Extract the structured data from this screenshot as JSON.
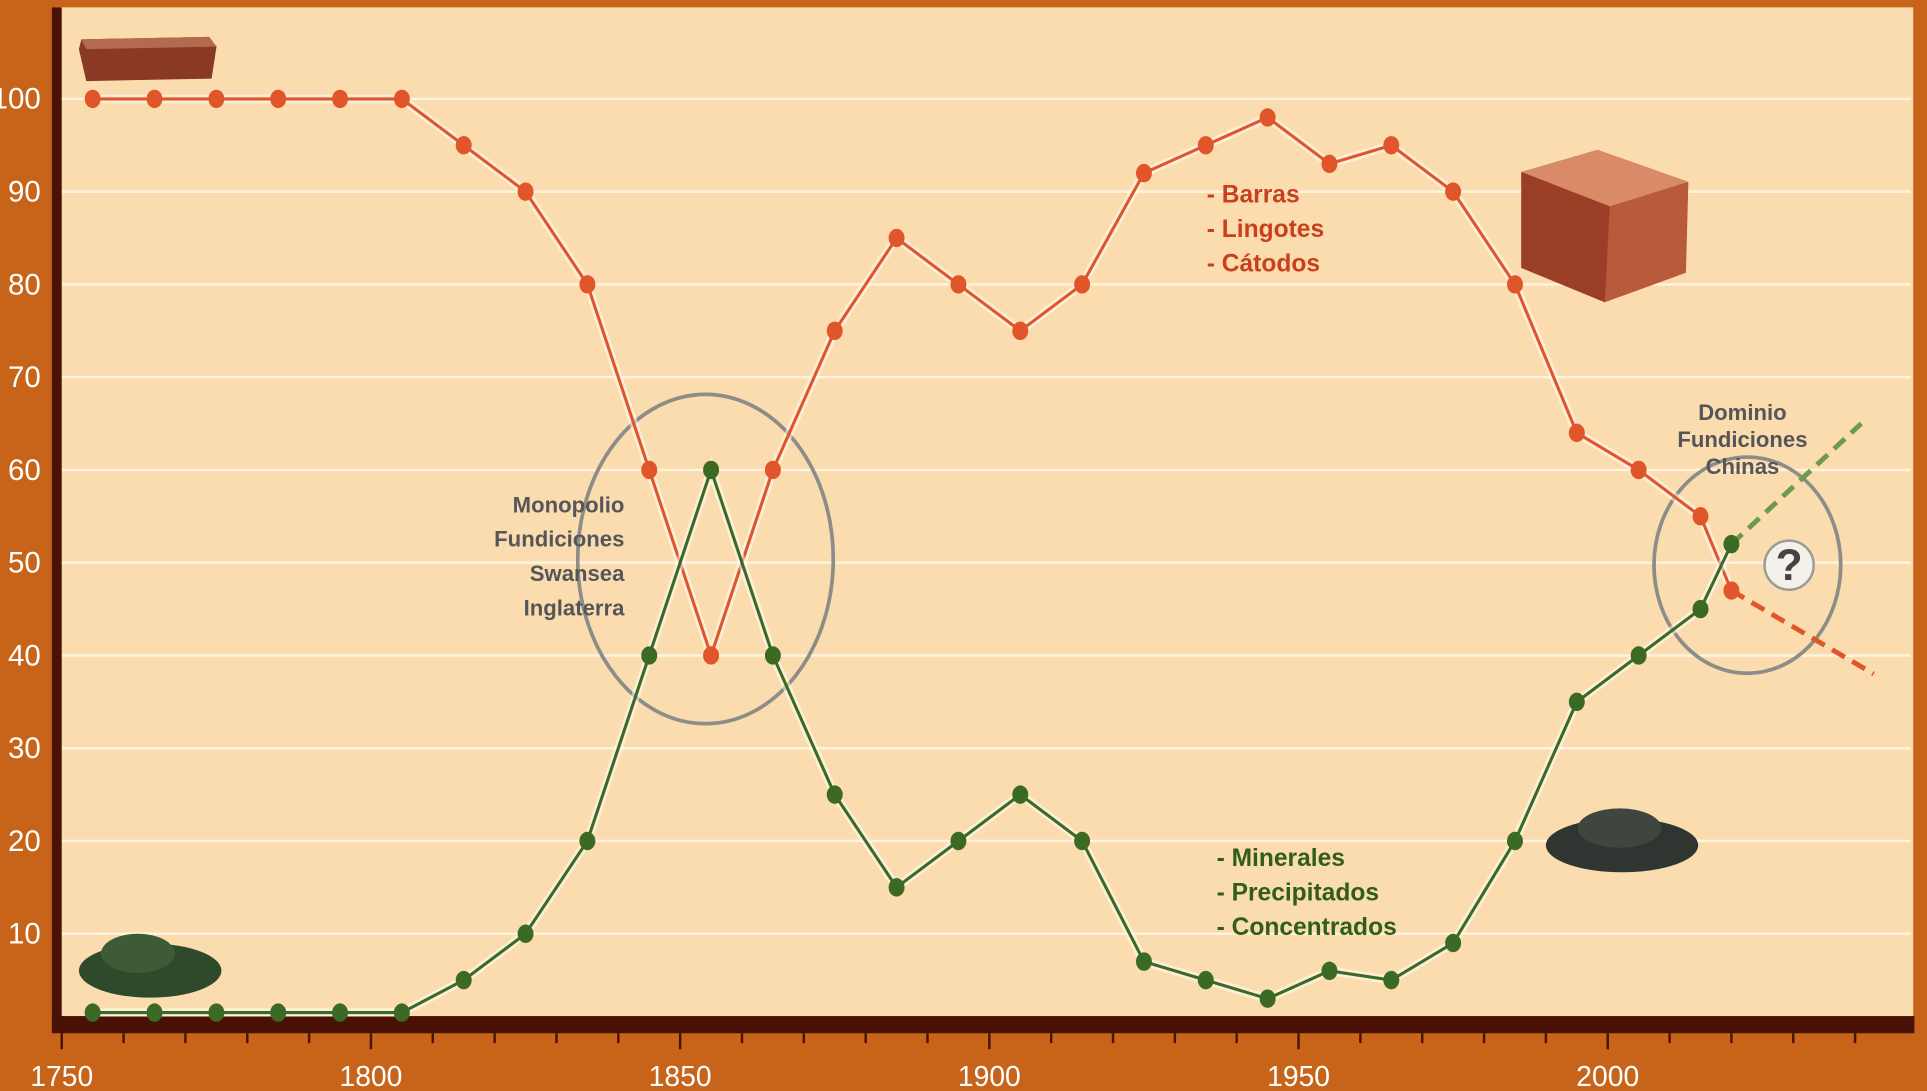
{
  "chart_data": {
    "type": "line",
    "x": [
      1755,
      1765,
      1775,
      1785,
      1795,
      1805,
      1815,
      1825,
      1835,
      1845,
      1855,
      1865,
      1875,
      1885,
      1895,
      1905,
      1915,
      1925,
      1935,
      1945,
      1955,
      1965,
      1975,
      1985,
      1995,
      2005,
      2015,
      2020
    ],
    "series": [
      {
        "color": "#e0552a",
        "values": [
          100,
          100,
          100,
          100,
          100,
          100,
          95,
          90,
          80,
          60,
          40,
          60,
          75,
          85,
          80,
          75,
          80,
          92,
          95,
          98,
          93,
          95,
          90,
          80,
          64,
          60,
          55,
          47
        ]
      },
      {
        "color": "#3b6a24",
        "values": [
          1.5,
          1.5,
          1.5,
          1.5,
          1.5,
          1.5,
          5,
          10,
          20,
          40,
          60,
          40,
          25,
          15,
          20,
          25,
          20,
          7,
          5,
          3,
          6,
          5,
          9,
          20,
          35,
          40,
          45,
          52
        ]
      }
    ],
    "projections": [
      {
        "color": "#e0552a",
        "x": [
          2020,
          2043
        ],
        "values": [
          47,
          38
        ]
      },
      {
        "color": "#6f9a4c",
        "x": [
          2020,
          2041
        ],
        "values": [
          52,
          65
        ]
      }
    ],
    "xlim": [
      1749,
      2049
    ],
    "ylim": [
      0,
      110
    ],
    "xticks": [
      1750,
      1800,
      1850,
      1900,
      1950,
      2000
    ],
    "xminorticks": [
      1760,
      1770,
      1780,
      1790,
      1810,
      1820,
      1830,
      1840,
      1860,
      1870,
      1880,
      1890,
      1910,
      1920,
      1930,
      1940,
      1960,
      1970,
      1980,
      1990,
      2010,
      2020,
      2030,
      2040
    ],
    "yticks": [
      10,
      20,
      30,
      40,
      50,
      60,
      70,
      80,
      90,
      100
    ],
    "grid": true,
    "annotations": {
      "products": [
        "- Barras",
        "- Lingotes",
        "- Cátodos"
      ],
      "raw": [
        "- Minerales",
        "- Precipitados",
        "- Concentrados"
      ],
      "swansea": [
        "Monopolio",
        "Fundiciones",
        "Swansea",
        "Inglaterra"
      ],
      "china": [
        "Dominio",
        "Fundiciones",
        "Chinas"
      ],
      "question": "?"
    }
  }
}
